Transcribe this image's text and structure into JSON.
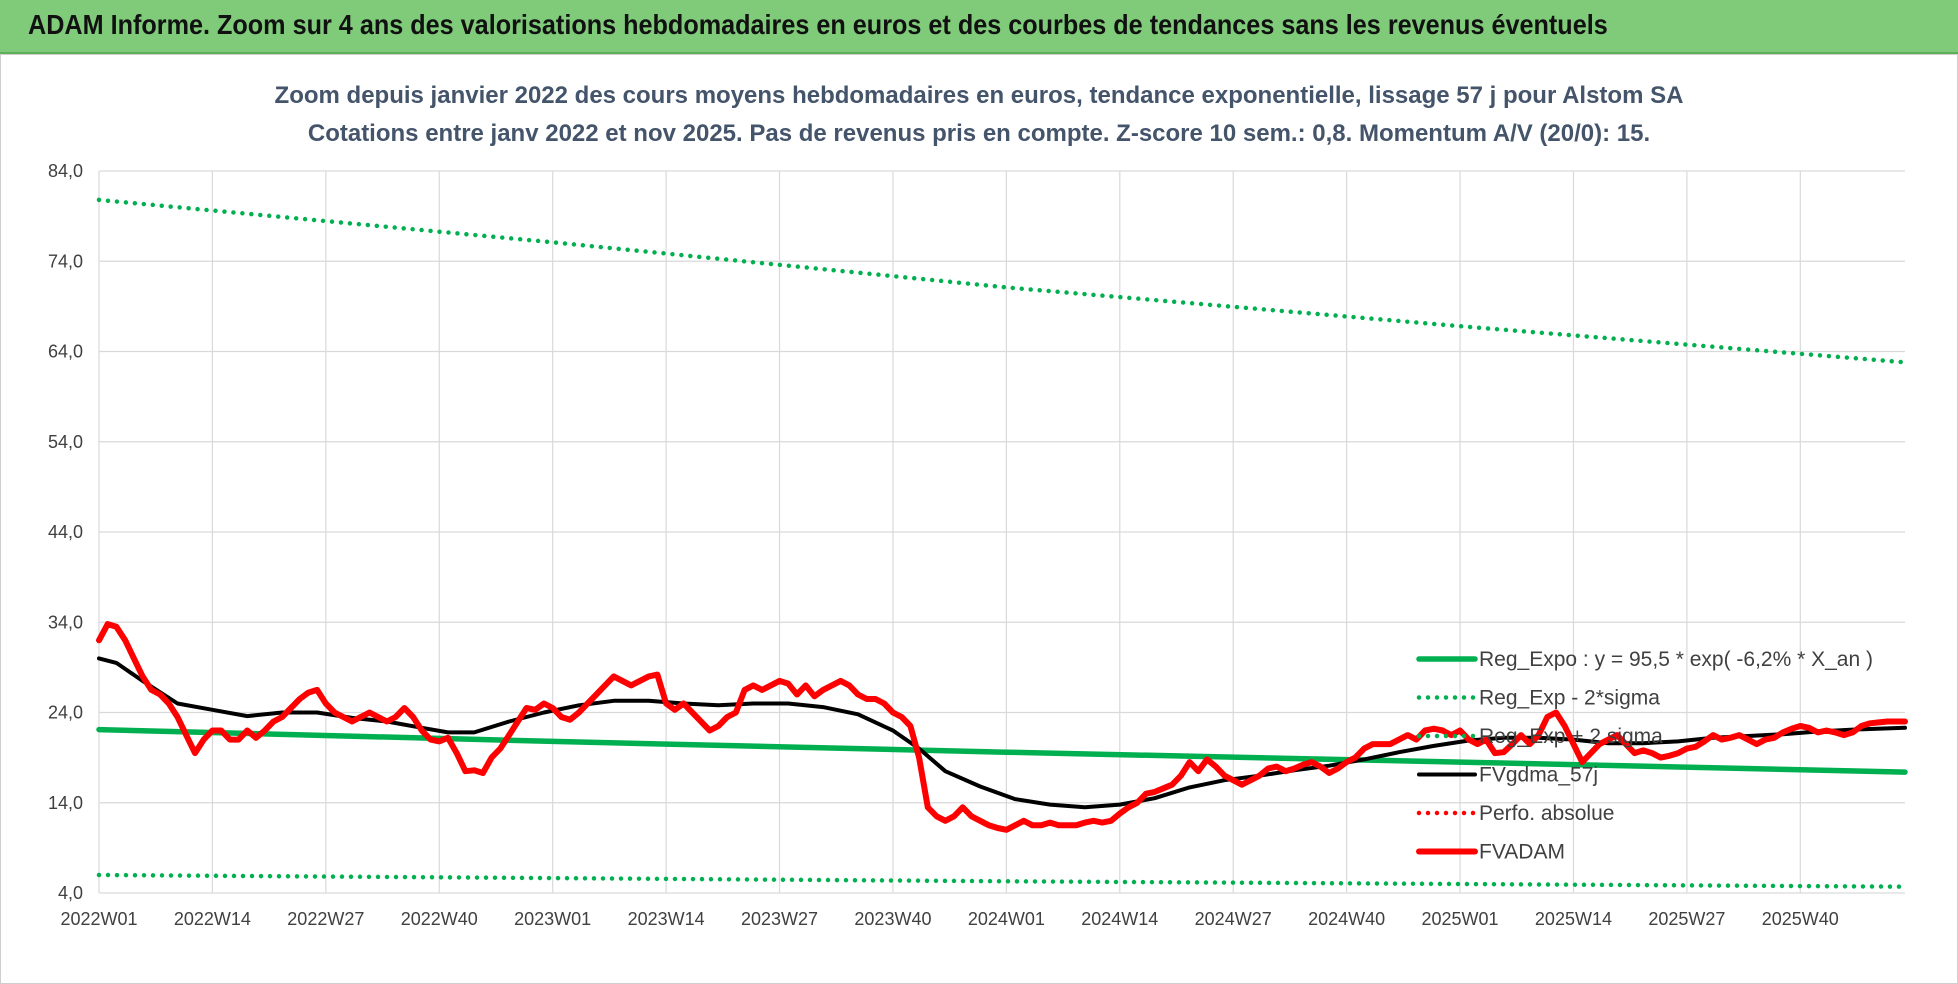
{
  "header": {
    "banner_title": "ADAM Informe. Zoom sur 4 ans des valorisations hebdomadaires en euros et des courbes de tendances sans les revenus éventuels"
  },
  "colors": {
    "banner_bg": "#7fcb7a",
    "reg_expo": "#00b050",
    "fvgdma": "#000000",
    "perfo_absolue": "#ff0000",
    "fvadam": "#ff0000",
    "grid": "#d9d9d9",
    "title_text": "#44546a"
  },
  "chart_data": {
    "type": "line",
    "title": "Zoom depuis janvier 2022 des cours moyens hebdomadaires en euros, tendance exponentielle, lissage 57 j pour Alstom SA",
    "subtitle": "Cotations entre janv 2022 et nov 2025. Pas de revenus pris en compte. Z-score 10 sem.: 0,8. Momentum A/V (20/0): 15.",
    "ylim": [
      4,
      84
    ],
    "y_ticks": [
      "4,0",
      "14,0",
      "24,0",
      "34,0",
      "44,0",
      "54,0",
      "64,0",
      "74,0",
      "84,0"
    ],
    "x_ticks": [
      "2022W01",
      "2022W14",
      "2022W27",
      "2022W40",
      "2023W01",
      "2023W14",
      "2023W27",
      "2023W40",
      "2024W01",
      "2024W14",
      "2024W27",
      "2024W40",
      "2025W01",
      "2025W14",
      "2025W27",
      "2025W40"
    ],
    "x_range_weeks": [
      0,
      207
    ],
    "grid": true,
    "legend_position": "bottom-right",
    "series": [
      {
        "name": "Reg_Expo : y = 95,5 * exp( -6,2% *  X_an )",
        "style": "solid",
        "color": "#00b050",
        "points": [
          [
            0,
            22.1
          ],
          [
            52,
            20.8
          ],
          [
            104,
            19.6
          ],
          [
            156,
            18.5
          ],
          [
            207,
            17.4
          ]
        ]
      },
      {
        "name": "Reg_Exp - 2*sigma",
        "style": "dotted",
        "color": "#00b050",
        "points": [
          [
            0,
            6.0
          ],
          [
            52,
            5.65
          ],
          [
            104,
            5.3
          ],
          [
            156,
            5.0
          ],
          [
            207,
            4.7
          ]
        ]
      },
      {
        "name": "Reg_Exp + 2 sigma",
        "style": "dotted",
        "color": "#00b050",
        "points": [
          [
            0,
            80.8
          ],
          [
            52,
            76.1
          ],
          [
            104,
            71.1
          ],
          [
            156,
            66.8
          ],
          [
            207,
            62.8
          ]
        ]
      },
      {
        "name": "FVgdma_57j",
        "style": "solid",
        "color": "#000000",
        "points": [
          [
            0,
            30.0
          ],
          [
            2,
            29.5
          ],
          [
            5,
            27.5
          ],
          [
            9,
            25.0
          ],
          [
            13,
            24.3
          ],
          [
            17,
            23.6
          ],
          [
            21,
            24.0
          ],
          [
            25,
            24.0
          ],
          [
            29,
            23.4
          ],
          [
            33,
            23.0
          ],
          [
            37,
            22.3
          ],
          [
            40,
            21.8
          ],
          [
            43,
            21.8
          ],
          [
            47,
            23.0
          ],
          [
            51,
            24.0
          ],
          [
            55,
            24.8
          ],
          [
            59,
            25.3
          ],
          [
            63,
            25.3
          ],
          [
            67,
            25.0
          ],
          [
            71,
            24.8
          ],
          [
            75,
            25.0
          ],
          [
            79,
            25.0
          ],
          [
            83,
            24.6
          ],
          [
            87,
            23.8
          ],
          [
            91,
            22.0
          ],
          [
            94,
            20.0
          ],
          [
            97,
            17.5
          ],
          [
            101,
            15.8
          ],
          [
            105,
            14.4
          ],
          [
            109,
            13.8
          ],
          [
            113,
            13.5
          ],
          [
            117,
            13.8
          ],
          [
            121,
            14.5
          ],
          [
            125,
            15.7
          ],
          [
            129,
            16.5
          ],
          [
            133,
            17.0
          ],
          [
            137,
            17.6
          ],
          [
            141,
            18.1
          ],
          [
            145,
            18.8
          ],
          [
            149,
            19.6
          ],
          [
            153,
            20.3
          ],
          [
            157,
            20.9
          ],
          [
            161,
            21.2
          ],
          [
            165,
            21.2
          ],
          [
            169,
            21.0
          ],
          [
            173,
            20.6
          ],
          [
            177,
            20.6
          ],
          [
            181,
            20.8
          ],
          [
            185,
            21.2
          ],
          [
            189,
            21.4
          ],
          [
            193,
            21.6
          ],
          [
            197,
            21.9
          ],
          [
            201,
            22.1
          ],
          [
            207,
            22.3
          ]
        ]
      },
      {
        "name": "Perfo. absolue",
        "style": "dotted",
        "color": "#ff0000",
        "points": []
      },
      {
        "name": "FVADAM",
        "style": "solid",
        "color": "#ff0000",
        "points": [
          [
            0,
            32.0
          ],
          [
            1,
            33.8
          ],
          [
            2,
            33.5
          ],
          [
            3,
            32.0
          ],
          [
            4,
            30.0
          ],
          [
            5,
            28.0
          ],
          [
            6,
            26.5
          ],
          [
            7,
            26.0
          ],
          [
            8,
            25.0
          ],
          [
            9,
            23.5
          ],
          [
            10,
            21.5
          ],
          [
            11,
            19.5
          ],
          [
            12,
            21.0
          ],
          [
            13,
            22.0
          ],
          [
            14,
            22.0
          ],
          [
            15,
            21.0
          ],
          [
            16,
            21.0
          ],
          [
            17,
            22.0
          ],
          [
            18,
            21.2
          ],
          [
            19,
            22.0
          ],
          [
            20,
            23.0
          ],
          [
            21,
            23.5
          ],
          [
            22,
            24.5
          ],
          [
            23,
            25.5
          ],
          [
            24,
            26.2
          ],
          [
            25,
            26.5
          ],
          [
            26,
            25.0
          ],
          [
            27,
            24.0
          ],
          [
            28,
            23.5
          ],
          [
            29,
            23.0
          ],
          [
            30,
            23.5
          ],
          [
            31,
            24.0
          ],
          [
            32,
            23.5
          ],
          [
            33,
            23.0
          ],
          [
            34,
            23.5
          ],
          [
            35,
            24.5
          ],
          [
            36,
            23.5
          ],
          [
            37,
            22.0
          ],
          [
            38,
            21.0
          ],
          [
            39,
            20.8
          ],
          [
            40,
            21.2
          ],
          [
            41,
            19.5
          ],
          [
            42,
            17.5
          ],
          [
            43,
            17.6
          ],
          [
            44,
            17.3
          ],
          [
            45,
            19.0
          ],
          [
            46,
            20.0
          ],
          [
            47,
            21.5
          ],
          [
            48,
            23.0
          ],
          [
            49,
            24.5
          ],
          [
            50,
            24.3
          ],
          [
            51,
            25.0
          ],
          [
            52,
            24.5
          ],
          [
            53,
            23.5
          ],
          [
            54,
            23.2
          ],
          [
            55,
            24.0
          ],
          [
            56,
            25.0
          ],
          [
            57,
            26.0
          ],
          [
            58,
            27.0
          ],
          [
            59,
            28.0
          ],
          [
            60,
            27.5
          ],
          [
            61,
            27.0
          ],
          [
            62,
            27.5
          ],
          [
            63,
            28.0
          ],
          [
            64,
            28.2
          ],
          [
            65,
            25.0
          ],
          [
            66,
            24.3
          ],
          [
            67,
            25.0
          ],
          [
            68,
            24.0
          ],
          [
            69,
            23.0
          ],
          [
            70,
            22.0
          ],
          [
            71,
            22.5
          ],
          [
            72,
            23.5
          ],
          [
            73,
            24.0
          ],
          [
            74,
            26.5
          ],
          [
            75,
            27.0
          ],
          [
            76,
            26.5
          ],
          [
            77,
            27.0
          ],
          [
            78,
            27.5
          ],
          [
            79,
            27.2
          ],
          [
            80,
            26.0
          ],
          [
            81,
            27.0
          ],
          [
            82,
            25.8
          ],
          [
            83,
            26.5
          ],
          [
            84,
            27.0
          ],
          [
            85,
            27.5
          ],
          [
            86,
            27.0
          ],
          [
            87,
            26.0
          ],
          [
            88,
            25.5
          ],
          [
            89,
            25.5
          ],
          [
            90,
            25.0
          ],
          [
            91,
            24.0
          ],
          [
            92,
            23.5
          ],
          [
            93,
            22.5
          ],
          [
            94,
            19.0
          ],
          [
            95,
            13.5
          ],
          [
            96,
            12.5
          ],
          [
            97,
            12.0
          ],
          [
            98,
            12.5
          ],
          [
            99,
            13.5
          ],
          [
            100,
            12.5
          ],
          [
            101,
            12.0
          ],
          [
            102,
            11.5
          ],
          [
            103,
            11.2
          ],
          [
            104,
            11.0
          ],
          [
            105,
            11.5
          ],
          [
            106,
            12.0
          ],
          [
            107,
            11.5
          ],
          [
            108,
            11.5
          ],
          [
            109,
            11.8
          ],
          [
            110,
            11.5
          ],
          [
            111,
            11.5
          ],
          [
            112,
            11.5
          ],
          [
            113,
            11.8
          ],
          [
            114,
            12.0
          ],
          [
            115,
            11.8
          ],
          [
            116,
            12.0
          ],
          [
            117,
            12.8
          ],
          [
            118,
            13.5
          ],
          [
            119,
            14.0
          ],
          [
            120,
            15.0
          ],
          [
            121,
            15.2
          ],
          [
            122,
            15.6
          ],
          [
            123,
            16.0
          ],
          [
            124,
            17.0
          ],
          [
            125,
            18.5
          ],
          [
            126,
            17.5
          ],
          [
            127,
            18.8
          ],
          [
            128,
            18.0
          ],
          [
            129,
            17.0
          ],
          [
            130,
            16.5
          ],
          [
            131,
            16.0
          ],
          [
            132,
            16.5
          ],
          [
            133,
            17.0
          ],
          [
            134,
            17.8
          ],
          [
            135,
            18.0
          ],
          [
            136,
            17.5
          ],
          [
            137,
            17.8
          ],
          [
            138,
            18.2
          ],
          [
            139,
            18.5
          ],
          [
            140,
            18.0
          ],
          [
            141,
            17.3
          ],
          [
            142,
            17.8
          ],
          [
            143,
            18.5
          ],
          [
            144,
            19.0
          ],
          [
            145,
            20.0
          ],
          [
            146,
            20.5
          ],
          [
            147,
            20.5
          ],
          [
            148,
            20.5
          ],
          [
            149,
            21.0
          ],
          [
            150,
            21.5
          ],
          [
            151,
            21.0
          ],
          [
            152,
            22.0
          ],
          [
            153,
            22.2
          ],
          [
            154,
            22.0
          ],
          [
            155,
            21.5
          ],
          [
            156,
            22.0
          ],
          [
            157,
            21.0
          ],
          [
            158,
            20.5
          ],
          [
            159,
            21.0
          ],
          [
            160,
            19.5
          ],
          [
            161,
            19.6
          ],
          [
            162,
            20.5
          ],
          [
            163,
            21.5
          ],
          [
            164,
            20.5
          ],
          [
            165,
            21.5
          ],
          [
            166,
            23.5
          ],
          [
            167,
            24.0
          ],
          [
            168,
            22.5
          ],
          [
            169,
            20.5
          ],
          [
            170,
            18.5
          ],
          [
            171,
            19.5
          ],
          [
            172,
            20.5
          ],
          [
            173,
            21.0
          ],
          [
            174,
            21.5
          ],
          [
            175,
            20.5
          ],
          [
            176,
            19.5
          ],
          [
            177,
            19.8
          ],
          [
            178,
            19.5
          ],
          [
            179,
            19.0
          ],
          [
            180,
            19.2
          ],
          [
            181,
            19.5
          ],
          [
            182,
            20.0
          ],
          [
            183,
            20.2
          ],
          [
            184,
            20.8
          ],
          [
            185,
            21.5
          ],
          [
            186,
            21.0
          ],
          [
            187,
            21.2
          ],
          [
            188,
            21.5
          ],
          [
            189,
            21.0
          ],
          [
            190,
            20.5
          ],
          [
            191,
            21.0
          ],
          [
            192,
            21.2
          ],
          [
            193,
            21.8
          ],
          [
            194,
            22.2
          ],
          [
            195,
            22.5
          ],
          [
            196,
            22.3
          ],
          [
            197,
            21.8
          ],
          [
            198,
            22.0
          ],
          [
            199,
            21.8
          ],
          [
            200,
            21.5
          ],
          [
            201,
            21.8
          ],
          [
            202,
            22.5
          ],
          [
            203,
            22.8
          ],
          [
            204,
            22.9
          ],
          [
            205,
            23.0
          ],
          [
            206,
            23.0
          ],
          [
            207,
            23.0
          ]
        ]
      }
    ]
  }
}
